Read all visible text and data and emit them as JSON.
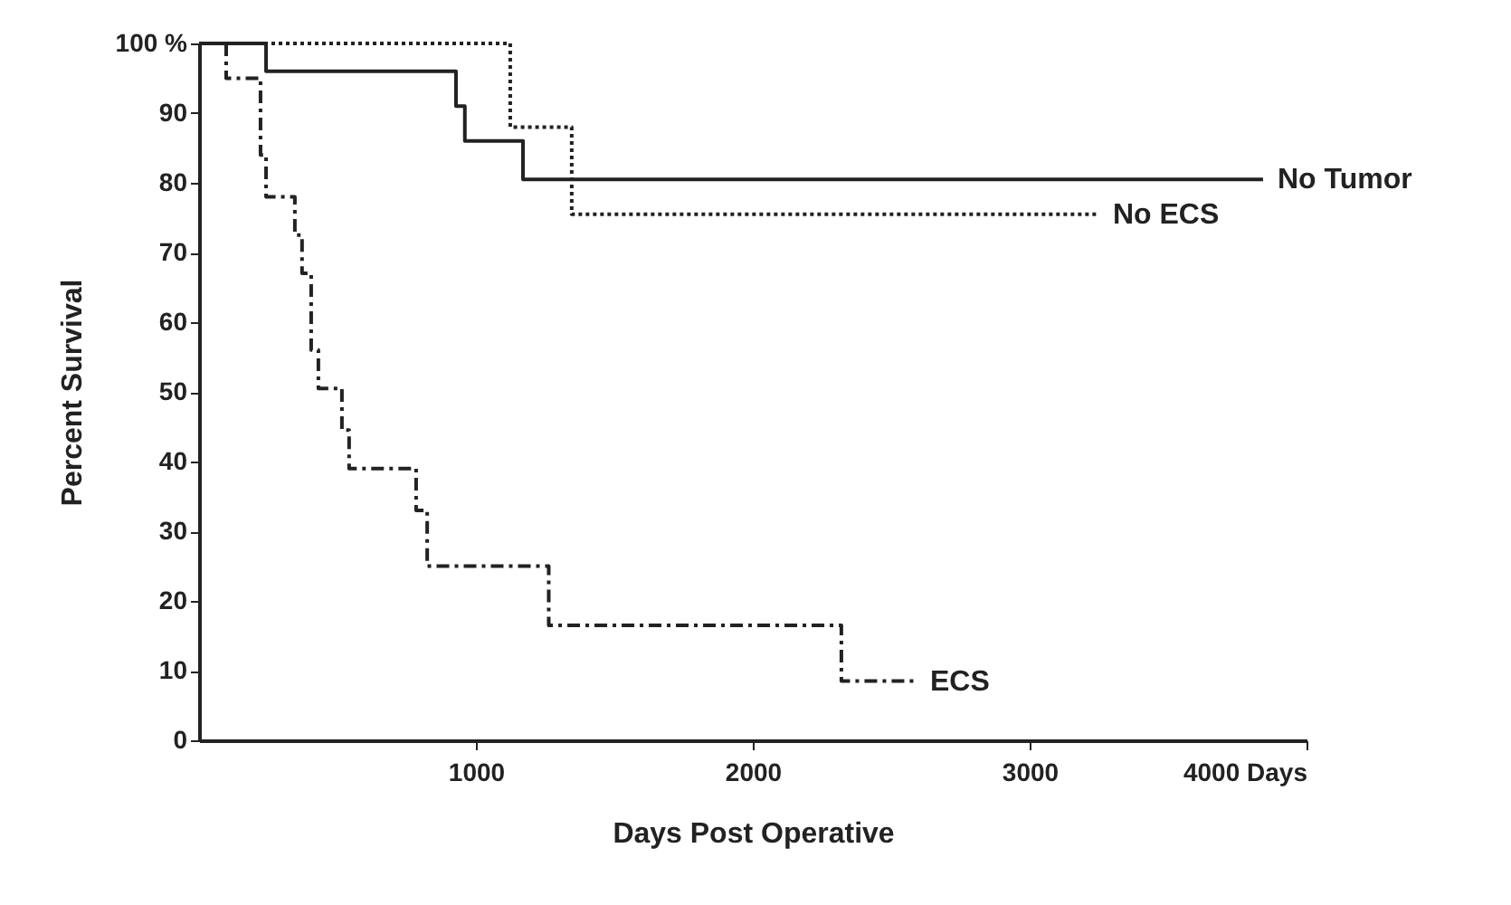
{
  "chart_data": {
    "type": "step",
    "xlabel": "Days Post Operative",
    "ylabel": "Percent Survival",
    "xlim": [
      0,
      4000
    ],
    "xticks": [
      1000,
      2000,
      3000,
      {
        "value": 4000,
        "label": "4000  Days"
      }
    ],
    "ylim": [
      0,
      100
    ],
    "yticks": [
      0,
      10,
      20,
      30,
      40,
      50,
      60,
      70,
      80,
      90,
      {
        "value": 100,
        "label": "100 %"
      }
    ],
    "grid": false,
    "legend": false,
    "marker": "none",
    "series": [
      {
        "name": "No Tumor",
        "color": "#222222",
        "line_style": "solid",
        "x": [
          0,
          242,
          928,
          960,
          1170,
          3843
        ],
        "values": [
          100,
          96,
          91,
          86,
          80.5,
          80.5
        ]
      },
      {
        "name": "No ECS",
        "color": "#222222",
        "line_style": "dotted",
        "x": [
          0,
          1124,
          1346,
          3248
        ],
        "values": [
          100,
          88,
          75.5,
          75.5
        ]
      },
      {
        "name": "ECS",
        "color": "#222222",
        "line_style": "dashed",
        "x": [
          0,
          98,
          222,
          242,
          346,
          372,
          405,
          431,
          516,
          542,
          784,
          824,
          1263,
          2320,
          2588
        ],
        "values": [
          100,
          95,
          84,
          78,
          72.5,
          67,
          56,
          50.5,
          44.5,
          39,
          33,
          25,
          16.5,
          8.5,
          8.5
        ]
      }
    ]
  }
}
